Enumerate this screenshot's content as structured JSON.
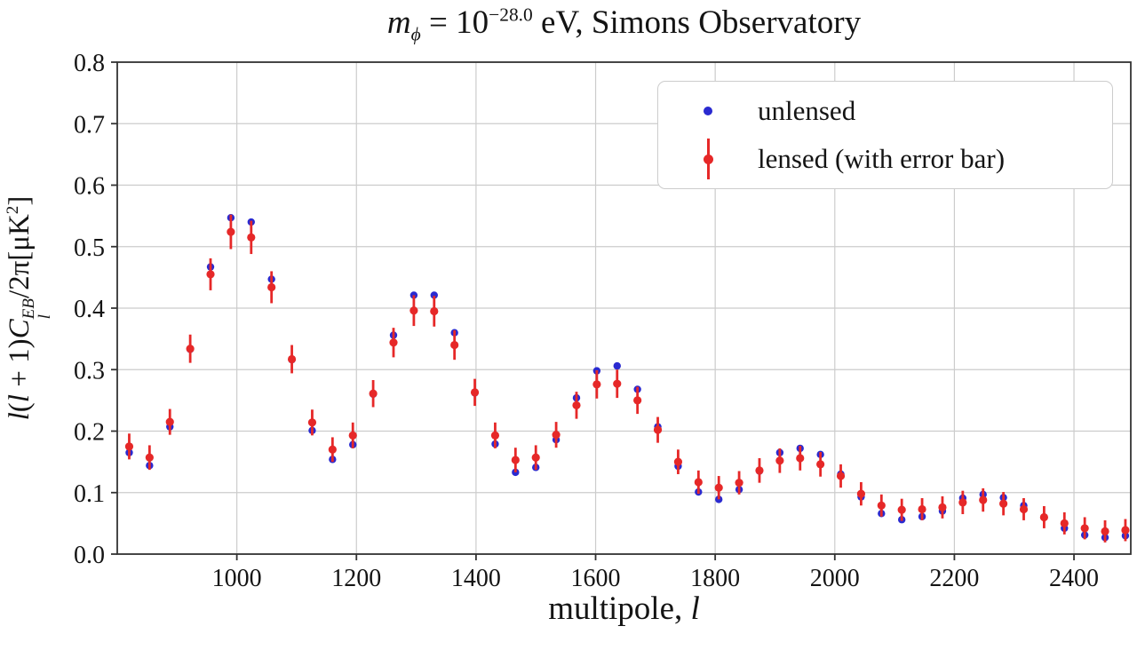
{
  "title": {
    "var1": "m",
    "sub1": "ϕ",
    "mid": " = 10",
    "sup1": "−28.0",
    "rest": " eV, Simons Observatory"
  },
  "x_axis_label": {
    "p1": "multipole, ",
    "var": "l"
  },
  "y_axis_label": {
    "p1": "l",
    "p2": "(",
    "p3": "l",
    "p4": " + 1)",
    "c": "C",
    "sup": "EB",
    "sub": "l",
    "p5": "/2π[μK",
    "sup2": "2",
    "p6": "]"
  },
  "legend": {
    "unlensed_label": "unlensed",
    "lensed_label": "lensed (with error bar)"
  },
  "colors": {
    "blue": "#2a2ad0",
    "red": "#e62828",
    "grid": "#cccccc",
    "spine": "#333333",
    "text": "#141414"
  },
  "chart_data": {
    "type": "scatter",
    "title": "m_phi = 10^-28.0 eV, Simons Observatory",
    "xlabel": "multipole, l",
    "ylabel": "l(l+1)C_l^{EB}/2pi [uK^2]",
    "xlim": [
      800,
      2495
    ],
    "ylim": [
      0.0,
      0.8
    ],
    "grid": true,
    "legend_position": "upper right",
    "xtick_values": [
      1000,
      1200,
      1400,
      1600,
      1800,
      2000,
      2200,
      2400
    ],
    "xtick_labels": [
      "1000",
      "1200",
      "1400",
      "1600",
      "1800",
      "2000",
      "2200",
      "2400"
    ],
    "ytick_values": [
      0.0,
      0.1,
      0.2,
      0.3,
      0.4,
      0.5,
      0.6,
      0.7,
      0.8
    ],
    "ytick_labels": [
      "0.0",
      "0.1",
      "0.2",
      "0.3",
      "0.4",
      "0.5",
      "0.6",
      "0.7",
      "0.8"
    ],
    "x": [
      820,
      854,
      888,
      922,
      956,
      990,
      1024,
      1058,
      1092,
      1126,
      1160,
      1194,
      1228,
      1262,
      1296,
      1330,
      1364,
      1398,
      1432,
      1466,
      1500,
      1534,
      1568,
      1602,
      1636,
      1670,
      1704,
      1738,
      1772,
      1806,
      1840,
      1874,
      1908,
      1942,
      1976,
      2010,
      2044,
      2078,
      2112,
      2146,
      2180,
      2214,
      2248,
      2282,
      2316,
      2350,
      2384,
      2418,
      2452,
      2486
    ],
    "series": [
      {
        "name": "unlensed",
        "marker": "dot",
        "values": [
          0.165,
          0.144,
          0.207,
          0.333,
          0.467,
          0.547,
          0.54,
          0.447,
          0.316,
          0.201,
          0.154,
          0.178,
          0.26,
          0.356,
          0.421,
          0.421,
          0.36,
          0.262,
          0.179,
          0.133,
          0.141,
          0.186,
          0.254,
          0.298,
          0.306,
          0.268,
          0.207,
          0.143,
          0.101,
          0.089,
          0.105,
          0.135,
          0.165,
          0.172,
          0.162,
          0.13,
          0.093,
          0.066,
          0.056,
          0.061,
          0.07,
          0.091,
          0.097,
          0.092,
          0.079,
          0.06,
          0.042,
          0.031,
          0.027,
          0.03
        ]
      },
      {
        "name": "lensed (with error bar)",
        "marker": "errorbar-dot",
        "values": [
          0.175,
          0.157,
          0.215,
          0.334,
          0.455,
          0.524,
          0.515,
          0.434,
          0.317,
          0.214,
          0.17,
          0.193,
          0.261,
          0.344,
          0.396,
          0.395,
          0.34,
          0.263,
          0.193,
          0.153,
          0.157,
          0.194,
          0.242,
          0.276,
          0.277,
          0.25,
          0.202,
          0.15,
          0.117,
          0.108,
          0.116,
          0.136,
          0.152,
          0.156,
          0.146,
          0.127,
          0.098,
          0.079,
          0.072,
          0.073,
          0.076,
          0.084,
          0.088,
          0.082,
          0.073,
          0.06,
          0.05,
          0.042,
          0.037,
          0.039
        ],
        "errors": [
          0.021,
          0.02,
          0.021,
          0.023,
          0.026,
          0.028,
          0.027,
          0.026,
          0.023,
          0.021,
          0.02,
          0.021,
          0.022,
          0.024,
          0.025,
          0.025,
          0.024,
          0.022,
          0.021,
          0.02,
          0.02,
          0.021,
          0.022,
          0.023,
          0.023,
          0.022,
          0.021,
          0.02,
          0.019,
          0.019,
          0.019,
          0.02,
          0.02,
          0.02,
          0.02,
          0.019,
          0.019,
          0.018,
          0.018,
          0.018,
          0.018,
          0.019,
          0.019,
          0.019,
          0.018,
          0.018,
          0.018,
          0.018,
          0.018,
          0.018
        ]
      }
    ]
  }
}
